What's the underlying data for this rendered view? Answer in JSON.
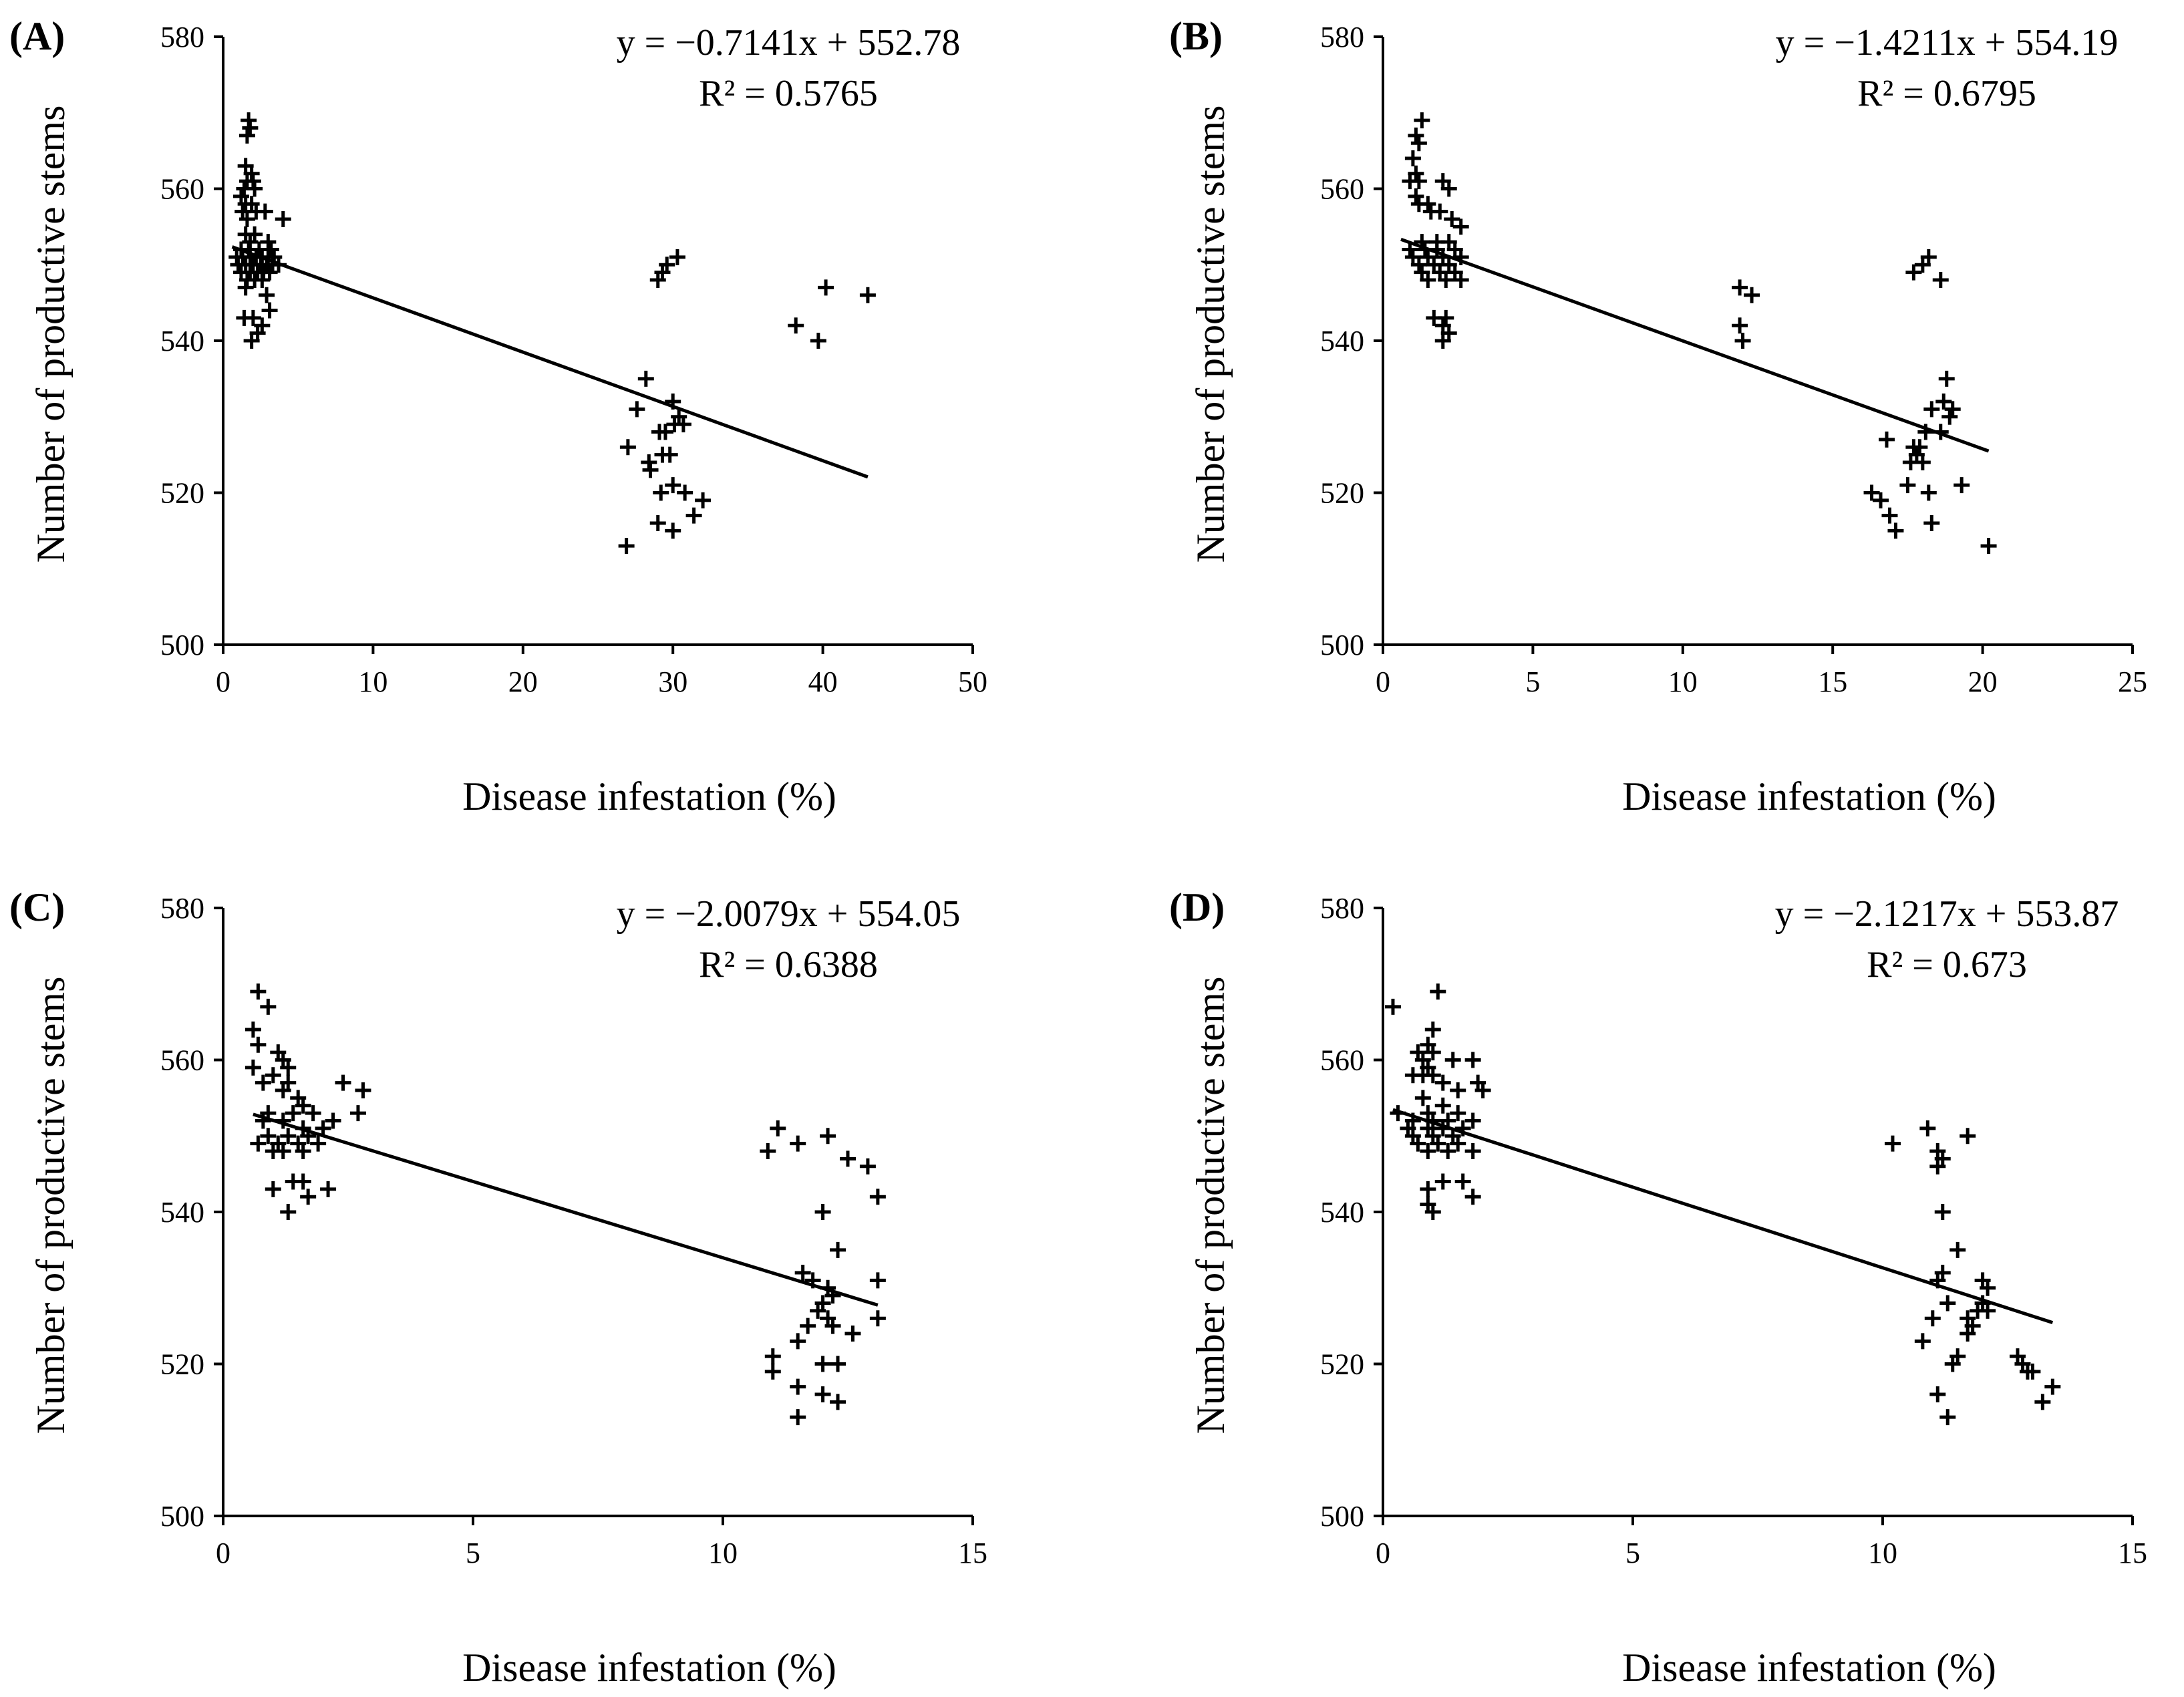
{
  "chart_data": [
    {
      "type": "scatter",
      "panel_label": "(A)",
      "xlabel": "Disease infestation (%)",
      "ylabel": "Number of productive stems",
      "xlim": [
        0,
        50
      ],
      "ylim": [
        500,
        580
      ],
      "xticks": [
        0,
        10,
        20,
        30,
        40,
        50
      ],
      "xtick_labels": [
        "0",
        "10",
        "20",
        "30",
        "40",
        "50"
      ],
      "yticks": [
        500,
        520,
        540,
        560,
        580
      ],
      "ytick_labels": [
        "500",
        "520",
        "540",
        "560",
        "580"
      ],
      "grid": false,
      "equation": "y = −0.7141x + 552.78",
      "r_squared": "R² = 0.5765",
      "trendline": {
        "slope": -0.7141,
        "intercept": 552.78,
        "x_range": [
          0.6,
          43.0
        ]
      },
      "points": [
        [
          1.7,
          569
        ],
        [
          1.6,
          567
        ],
        [
          1.8,
          568
        ],
        [
          1.5,
          563
        ],
        [
          1.9,
          562
        ],
        [
          1.6,
          561
        ],
        [
          2.0,
          561
        ],
        [
          1.4,
          560
        ],
        [
          2.1,
          560
        ],
        [
          1.2,
          559
        ],
        [
          1.5,
          558
        ],
        [
          1.9,
          558
        ],
        [
          1.3,
          557
        ],
        [
          2.2,
          557
        ],
        [
          2.8,
          557
        ],
        [
          1.6,
          556
        ],
        [
          4.0,
          556
        ],
        [
          1.5,
          554
        ],
        [
          2.1,
          554
        ],
        [
          1.8,
          553
        ],
        [
          3.0,
          553
        ],
        [
          1.2,
          552
        ],
        [
          1.7,
          552
        ],
        [
          2.4,
          552
        ],
        [
          3.2,
          552
        ],
        [
          0.9,
          551
        ],
        [
          1.3,
          551
        ],
        [
          1.8,
          551
        ],
        [
          2.2,
          551
        ],
        [
          2.6,
          551
        ],
        [
          3.0,
          551
        ],
        [
          3.4,
          551
        ],
        [
          1.0,
          550
        ],
        [
          1.5,
          550
        ],
        [
          2.0,
          550
        ],
        [
          2.5,
          550
        ],
        [
          2.9,
          550
        ],
        [
          3.3,
          550
        ],
        [
          3.7,
          550
        ],
        [
          1.2,
          549
        ],
        [
          1.8,
          549
        ],
        [
          2.3,
          549
        ],
        [
          2.7,
          549
        ],
        [
          3.1,
          549
        ],
        [
          1.6,
          548
        ],
        [
          2.1,
          548
        ],
        [
          2.6,
          548
        ],
        [
          1.5,
          547
        ],
        [
          2.9,
          546
        ],
        [
          1.4,
          543
        ],
        [
          2.0,
          543
        ],
        [
          3.1,
          544
        ],
        [
          2.6,
          542
        ],
        [
          2.3,
          541
        ],
        [
          1.9,
          540
        ],
        [
          29.0,
          548
        ],
        [
          29.3,
          549
        ],
        [
          29.6,
          550
        ],
        [
          30.3,
          551
        ],
        [
          40.2,
          547
        ],
        [
          43.0,
          546
        ],
        [
          38.2,
          542
        ],
        [
          39.7,
          540
        ],
        [
          28.2,
          535
        ],
        [
          27.6,
          531
        ],
        [
          30.0,
          532
        ],
        [
          30.4,
          530
        ],
        [
          30.1,
          529
        ],
        [
          29.5,
          528
        ],
        [
          29.1,
          528
        ],
        [
          30.7,
          529
        ],
        [
          27.0,
          526
        ],
        [
          29.3,
          525
        ],
        [
          29.8,
          525
        ],
        [
          28.5,
          523
        ],
        [
          28.4,
          524
        ],
        [
          30.0,
          521
        ],
        [
          29.2,
          520
        ],
        [
          30.8,
          520
        ],
        [
          32.0,
          519
        ],
        [
          31.4,
          517
        ],
        [
          29.0,
          516
        ],
        [
          30.0,
          515
        ],
        [
          26.9,
          513
        ]
      ]
    },
    {
      "type": "scatter",
      "panel_label": "(B)",
      "xlabel": "Disease infestation (%)",
      "ylabel": "Number of productive stems",
      "xlim": [
        0,
        25
      ],
      "ylim": [
        500,
        580
      ],
      "xticks": [
        0,
        5,
        10,
        15,
        20,
        25
      ],
      "xtick_labels": [
        "0",
        "5",
        "10",
        "15",
        "20",
        "25"
      ],
      "yticks": [
        500,
        520,
        540,
        560,
        580
      ],
      "ytick_labels": [
        "500",
        "520",
        "540",
        "560",
        "580"
      ],
      "grid": false,
      "equation": "y = −1.4211x + 554.19",
      "r_squared": "R² = 0.6795",
      "trendline": {
        "slope": -1.4211,
        "intercept": 554.19,
        "x_range": [
          0.6,
          20.2
        ]
      },
      "points": [
        [
          1.3,
          569
        ],
        [
          1.1,
          567
        ],
        [
          1.2,
          566
        ],
        [
          1.0,
          564
        ],
        [
          1.1,
          562
        ],
        [
          0.9,
          561
        ],
        [
          1.2,
          561
        ],
        [
          2.0,
          561
        ],
        [
          2.2,
          560
        ],
        [
          1.1,
          559
        ],
        [
          1.5,
          558
        ],
        [
          1.2,
          558
        ],
        [
          1.6,
          557
        ],
        [
          1.9,
          557
        ],
        [
          2.3,
          556
        ],
        [
          2.6,
          555
        ],
        [
          1.8,
          553
        ],
        [
          1.3,
          553
        ],
        [
          2.2,
          553
        ],
        [
          0.9,
          552
        ],
        [
          1.4,
          552
        ],
        [
          1.8,
          552
        ],
        [
          2.4,
          552
        ],
        [
          1.0,
          551
        ],
        [
          1.5,
          551
        ],
        [
          2.0,
          551
        ],
        [
          2.6,
          551
        ],
        [
          1.2,
          550
        ],
        [
          1.7,
          550
        ],
        [
          2.2,
          550
        ],
        [
          1.3,
          549
        ],
        [
          1.9,
          549
        ],
        [
          2.4,
          549
        ],
        [
          1.5,
          548
        ],
        [
          2.1,
          548
        ],
        [
          2.6,
          548
        ],
        [
          1.7,
          543
        ],
        [
          2.1,
          543
        ],
        [
          2.0,
          542
        ],
        [
          2.2,
          541
        ],
        [
          2.0,
          540
        ],
        [
          11.9,
          547
        ],
        [
          12.3,
          546
        ],
        [
          11.9,
          542
        ],
        [
          12.0,
          540
        ],
        [
          17.7,
          549
        ],
        [
          18.0,
          550
        ],
        [
          18.2,
          551
        ],
        [
          18.6,
          548
        ],
        [
          18.8,
          535
        ],
        [
          18.7,
          532
        ],
        [
          19.0,
          531
        ],
        [
          18.3,
          531
        ],
        [
          18.9,
          530
        ],
        [
          17.7,
          526
        ],
        [
          17.9,
          526
        ],
        [
          18.6,
          528
        ],
        [
          18.1,
          528
        ],
        [
          16.8,
          527
        ],
        [
          17.8,
          525
        ],
        [
          17.6,
          524
        ],
        [
          18.0,
          524
        ],
        [
          17.5,
          521
        ],
        [
          18.2,
          520
        ],
        [
          19.3,
          521
        ],
        [
          16.3,
          520
        ],
        [
          16.6,
          519
        ],
        [
          16.9,
          517
        ],
        [
          17.1,
          515
        ],
        [
          18.3,
          516
        ],
        [
          20.2,
          513
        ]
      ]
    },
    {
      "type": "scatter",
      "panel_label": "(C)",
      "xlabel": "Disease infestation (%)",
      "ylabel": "Number of productive stems",
      "xlim": [
        0,
        15
      ],
      "ylim": [
        500,
        580
      ],
      "xticks": [
        0,
        5,
        10,
        15
      ],
      "xtick_labels": [
        "0",
        "5",
        "10",
        "15"
      ],
      "yticks": [
        500,
        520,
        540,
        560,
        580
      ],
      "ytick_labels": [
        "500",
        "520",
        "540",
        "560",
        "580"
      ],
      "grid": false,
      "equation": "y = −2.0079x + 554.05",
      "r_squared": "R² = 0.6388",
      "trendline": {
        "slope": -2.0079,
        "intercept": 554.05,
        "x_range": [
          0.6,
          13.1
        ]
      },
      "points": [
        [
          0.7,
          569
        ],
        [
          0.9,
          567
        ],
        [
          0.6,
          564
        ],
        [
          0.7,
          562
        ],
        [
          1.1,
          561
        ],
        [
          1.2,
          560
        ],
        [
          1.3,
          559
        ],
        [
          0.6,
          559
        ],
        [
          1.0,
          558
        ],
        [
          0.8,
          557
        ],
        [
          1.3,
          557
        ],
        [
          1.2,
          556
        ],
        [
          1.5,
          555
        ],
        [
          2.4,
          557
        ],
        [
          2.8,
          556
        ],
        [
          2.7,
          553
        ],
        [
          1.6,
          554
        ],
        [
          0.9,
          553
        ],
        [
          1.4,
          553
        ],
        [
          1.8,
          553
        ],
        [
          2.2,
          552
        ],
        [
          0.8,
          552
        ],
        [
          1.2,
          552
        ],
        [
          1.6,
          551
        ],
        [
          2.0,
          551
        ],
        [
          0.9,
          550
        ],
        [
          1.3,
          550
        ],
        [
          1.7,
          550
        ],
        [
          0.7,
          549
        ],
        [
          1.1,
          549
        ],
        [
          1.5,
          549
        ],
        [
          1.9,
          549
        ],
        [
          1.2,
          548
        ],
        [
          1.6,
          548
        ],
        [
          1.0,
          548
        ],
        [
          1.4,
          544
        ],
        [
          1.6,
          544
        ],
        [
          1.0,
          543
        ],
        [
          2.1,
          543
        ],
        [
          1.7,
          542
        ],
        [
          1.3,
          540
        ],
        [
          11.1,
          551
        ],
        [
          12.1,
          550
        ],
        [
          10.9,
          548
        ],
        [
          11.5,
          549
        ],
        [
          12.5,
          547
        ],
        [
          12.9,
          546
        ],
        [
          13.1,
          542
        ],
        [
          12.0,
          540
        ],
        [
          12.3,
          535
        ],
        [
          11.6,
          532
        ],
        [
          11.8,
          531
        ],
        [
          13.1,
          531
        ],
        [
          12.1,
          530
        ],
        [
          12.0,
          528
        ],
        [
          12.2,
          529
        ],
        [
          11.9,
          527
        ],
        [
          12.1,
          526
        ],
        [
          13.1,
          526
        ],
        [
          12.2,
          525
        ],
        [
          11.7,
          525
        ],
        [
          12.6,
          524
        ],
        [
          11.5,
          523
        ],
        [
          11.0,
          521
        ],
        [
          12.0,
          520
        ],
        [
          12.3,
          520
        ],
        [
          11.0,
          519
        ],
        [
          11.5,
          517
        ],
        [
          12.0,
          516
        ],
        [
          12.3,
          515
        ],
        [
          11.5,
          513
        ]
      ]
    },
    {
      "type": "scatter",
      "panel_label": "(D)",
      "xlabel": "Disease infestation (%)",
      "ylabel": "Number of productive stems",
      "xlim": [
        0,
        15
      ],
      "ylim": [
        500,
        580
      ],
      "xticks": [
        0,
        5,
        10,
        15
      ],
      "xtick_labels": [
        "0",
        "5",
        "10",
        "15"
      ],
      "yticks": [
        500,
        520,
        540,
        560,
        580
      ],
      "ytick_labels": [
        "500",
        "520",
        "540",
        "560",
        "580"
      ],
      "grid": false,
      "equation": "y = −2.1217x + 553.87",
      "r_squared": "R² = 0.673",
      "trendline": {
        "slope": -2.1217,
        "intercept": 553.87,
        "x_range": [
          0.2,
          13.4
        ]
      },
      "points": [
        [
          0.2,
          567
        ],
        [
          1.1,
          569
        ],
        [
          1.0,
          564
        ],
        [
          0.9,
          562
        ],
        [
          1.0,
          561
        ],
        [
          0.7,
          561
        ],
        [
          0.8,
          560
        ],
        [
          1.4,
          560
        ],
        [
          1.8,
          560
        ],
        [
          0.9,
          559
        ],
        [
          0.8,
          558
        ],
        [
          0.6,
          558
        ],
        [
          1.0,
          558
        ],
        [
          1.2,
          557
        ],
        [
          1.5,
          556
        ],
        [
          1.9,
          557
        ],
        [
          2.0,
          556
        ],
        [
          0.8,
          555
        ],
        [
          1.2,
          554
        ],
        [
          0.3,
          553
        ],
        [
          0.9,
          553
        ],
        [
          1.5,
          553
        ],
        [
          1.8,
          552
        ],
        [
          0.6,
          552
        ],
        [
          1.0,
          552
        ],
        [
          1.3,
          552
        ],
        [
          0.5,
          551
        ],
        [
          0.9,
          551
        ],
        [
          1.2,
          551
        ],
        [
          1.6,
          551
        ],
        [
          0.6,
          550
        ],
        [
          1.0,
          550
        ],
        [
          1.4,
          550
        ],
        [
          0.7,
          549
        ],
        [
          1.1,
          549
        ],
        [
          1.5,
          549
        ],
        [
          0.9,
          548
        ],
        [
          1.3,
          548
        ],
        [
          1.8,
          548
        ],
        [
          1.2,
          544
        ],
        [
          1.6,
          544
        ],
        [
          0.9,
          543
        ],
        [
          1.8,
          542
        ],
        [
          0.9,
          541
        ],
        [
          1.0,
          540
        ],
        [
          10.9,
          551
        ],
        [
          11.7,
          550
        ],
        [
          10.2,
          549
        ],
        [
          11.1,
          548
        ],
        [
          11.2,
          547
        ],
        [
          11.1,
          546
        ],
        [
          11.2,
          540
        ],
        [
          11.5,
          535
        ],
        [
          11.2,
          532
        ],
        [
          11.1,
          531
        ],
        [
          12.0,
          531
        ],
        [
          12.1,
          530
        ],
        [
          11.3,
          528
        ],
        [
          12.0,
          528
        ],
        [
          11.9,
          527
        ],
        [
          12.1,
          527
        ],
        [
          11.7,
          526
        ],
        [
          11.0,
          526
        ],
        [
          11.8,
          525
        ],
        [
          11.7,
          524
        ],
        [
          10.8,
          523
        ],
        [
          12.7,
          521
        ],
        [
          12.8,
          520
        ],
        [
          11.5,
          521
        ],
        [
          11.4,
          520
        ],
        [
          12.9,
          519
        ],
        [
          13.0,
          519
        ],
        [
          13.4,
          517
        ],
        [
          11.1,
          516
        ],
        [
          13.2,
          515
        ],
        [
          11.3,
          513
        ]
      ]
    }
  ]
}
